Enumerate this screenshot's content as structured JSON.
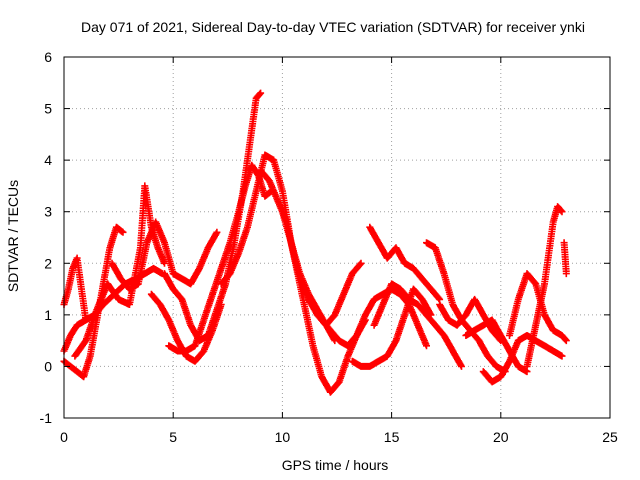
{
  "chart_data": {
    "type": "scatter",
    "title": "Day 071 of 2021, Sidereal Day-to-day VTEC variation (SDTVAR) for receiver ynki",
    "xlabel": "GPS time / hours",
    "ylabel": "SDTVAR / TECUs",
    "xlim": [
      0,
      25
    ],
    "ylim": [
      -1,
      6
    ],
    "xticks": [
      "0",
      "5",
      "10",
      "15",
      "20",
      "25"
    ],
    "yticks": [
      "-1",
      "0",
      "1",
      "2",
      "3",
      "4",
      "5",
      "6"
    ],
    "marker": "plus",
    "grid": true,
    "colors": {
      "series": "#ff0000",
      "grid": "#a0a0a0",
      "axis": "#000000"
    },
    "series": [
      {
        "name": "arc-01",
        "x": [
          0.0,
          0.2,
          0.4,
          0.6,
          0.8,
          1.0
        ],
        "y": [
          1.2,
          1.5,
          1.9,
          2.1,
          1.5,
          0.9
        ]
      },
      {
        "name": "arc-02",
        "x": [
          0.0,
          0.3,
          0.6,
          0.9,
          1.2,
          1.5,
          1.8,
          2.1,
          2.4,
          2.7
        ],
        "y": [
          0.1,
          0.0,
          -0.1,
          -0.2,
          0.2,
          0.9,
          1.6,
          2.3,
          2.7,
          2.6
        ]
      },
      {
        "name": "arc-03",
        "x": [
          0.0,
          0.3,
          0.6,
          1.0,
          1.4,
          1.8,
          2.3,
          2.8,
          3.3,
          3.7,
          4.1,
          4.5
        ],
        "y": [
          0.3,
          0.6,
          0.8,
          0.9,
          1.0,
          1.2,
          1.4,
          1.6,
          1.7,
          1.8,
          1.9,
          1.8
        ]
      },
      {
        "name": "arc-04",
        "x": [
          0.5,
          1.0,
          1.5,
          2.0,
          2.5,
          3.0,
          3.5,
          3.7,
          4.0,
          4.3,
          4.6
        ],
        "y": [
          0.2,
          0.5,
          1.1,
          1.6,
          1.3,
          1.2,
          2.3,
          3.5,
          2.7,
          2.3,
          2.0
        ]
      },
      {
        "name": "arc-05",
        "x": [
          2.2,
          2.6,
          3.0,
          3.4,
          3.8,
          4.2,
          4.6,
          5.0,
          5.4,
          5.8,
          6.2,
          6.6,
          7.0
        ],
        "y": [
          2.0,
          1.7,
          1.5,
          1.6,
          2.4,
          2.8,
          2.4,
          1.8,
          1.7,
          1.6,
          1.9,
          2.3,
          2.6
        ]
      },
      {
        "name": "arc-06",
        "x": [
          4.0,
          4.4,
          4.8,
          5.2,
          5.6,
          6.0,
          6.4,
          6.8,
          7.2
        ],
        "y": [
          1.4,
          1.2,
          0.9,
          0.5,
          0.2,
          0.1,
          0.3,
          0.7,
          1.2
        ]
      },
      {
        "name": "arc-07",
        "x": [
          4.6,
          5.0,
          5.4,
          5.8,
          6.2,
          6.6,
          7.0,
          7.4,
          7.8,
          8.2,
          8.5,
          8.8,
          9.0
        ],
        "y": [
          1.8,
          1.5,
          1.3,
          0.8,
          0.5,
          0.6,
          1.1,
          1.6,
          2.4,
          3.4,
          4.3,
          5.2,
          5.3
        ]
      },
      {
        "name": "arc-08",
        "x": [
          4.8,
          5.2,
          5.6,
          6.0,
          6.4,
          6.8,
          7.2,
          7.6,
          8.0,
          8.3,
          8.6,
          8.9,
          9.2,
          9.5
        ],
        "y": [
          0.4,
          0.3,
          0.3,
          0.4,
          0.9,
          1.4,
          1.9,
          2.4,
          3.0,
          3.5,
          3.9,
          3.7,
          3.3,
          3.4
        ]
      },
      {
        "name": "arc-09",
        "x": [
          7.2,
          7.6,
          8.0,
          8.4,
          8.8,
          9.2,
          9.6,
          10.0,
          10.4,
          10.8,
          11.2,
          11.6,
          12.0,
          12.4
        ],
        "y": [
          1.6,
          1.8,
          2.2,
          2.7,
          3.4,
          4.1,
          4.0,
          3.4,
          2.4,
          1.8,
          1.4,
          1.1,
          0.8,
          0.5
        ]
      },
      {
        "name": "arc-10",
        "x": [
          9.0,
          9.4,
          9.8,
          10.2,
          10.6,
          11.0,
          11.4,
          11.8,
          12.2,
          12.6,
          13.0,
          13.4,
          13.8
        ],
        "y": [
          3.8,
          3.6,
          3.2,
          2.8,
          2.0,
          1.2,
          0.4,
          -0.2,
          -0.5,
          -0.3,
          0.2,
          0.6,
          0.9
        ]
      },
      {
        "name": "arc-11",
        "x": [
          10.0,
          10.4,
          10.8,
          11.2,
          11.6,
          12.0,
          12.4,
          12.8,
          13.2,
          13.6
        ],
        "y": [
          3.0,
          2.4,
          1.7,
          1.3,
          1.0,
          0.8,
          1.0,
          1.4,
          1.8,
          2.0
        ]
      },
      {
        "name": "arc-12",
        "x": [
          11.8,
          12.2,
          12.6,
          13.0,
          13.4,
          13.8,
          14.2,
          14.6,
          15.0,
          15.4,
          15.8,
          16.2,
          16.6
        ],
        "y": [
          0.9,
          0.7,
          0.5,
          0.4,
          0.6,
          1.0,
          1.3,
          1.4,
          1.5,
          1.4,
          1.2,
          0.8,
          0.4
        ]
      },
      {
        "name": "arc-13",
        "x": [
          13.2,
          13.6,
          14.0,
          14.4,
          14.8,
          15.2,
          15.6,
          16.0,
          16.4,
          16.8
        ],
        "y": [
          0.1,
          0.0,
          0.0,
          0.1,
          0.2,
          0.5,
          1.0,
          1.5,
          1.3,
          1.0
        ]
      },
      {
        "name": "arc-14",
        "x": [
          14.0,
          14.4,
          14.8,
          15.2,
          15.6,
          16.0,
          16.4,
          16.8,
          17.2
        ],
        "y": [
          2.7,
          2.4,
          2.1,
          2.3,
          2.0,
          1.9,
          1.7,
          1.5,
          1.3
        ]
      },
      {
        "name": "arc-15",
        "x": [
          14.2,
          14.6,
          15.0,
          15.4,
          15.8,
          16.2,
          16.6,
          17.0,
          17.4,
          17.8,
          18.2
        ],
        "y": [
          0.8,
          1.2,
          1.6,
          1.5,
          1.3,
          1.2,
          1.0,
          0.8,
          0.6,
          0.3,
          0.0
        ]
      },
      {
        "name": "arc-16",
        "x": [
          16.6,
          17.0,
          17.4,
          17.8,
          18.2,
          18.6,
          19.0,
          19.4,
          19.8,
          20.2
        ],
        "y": [
          2.4,
          2.3,
          1.8,
          1.2,
          0.9,
          0.7,
          0.5,
          0.2,
          0.0,
          -0.1
        ]
      },
      {
        "name": "arc-17",
        "x": [
          17.2,
          17.6,
          18.0,
          18.4,
          18.8,
          19.2,
          19.6,
          20.0
        ],
        "y": [
          1.2,
          0.9,
          0.8,
          1.0,
          1.3,
          1.0,
          0.7,
          0.5
        ]
      },
      {
        "name": "arc-18",
        "x": [
          18.4,
          18.8,
          19.2,
          19.6,
          20.0,
          20.4,
          20.8,
          21.2
        ],
        "y": [
          0.6,
          0.7,
          0.8,
          0.9,
          0.6,
          0.3,
          0.0,
          -0.1
        ]
      },
      {
        "name": "arc-19",
        "x": [
          19.2,
          19.6,
          20.0,
          20.4,
          20.8,
          21.2,
          21.6,
          22.0,
          22.4,
          22.8
        ],
        "y": [
          -0.1,
          -0.3,
          -0.2,
          0.1,
          0.5,
          0.6,
          0.5,
          0.4,
          0.3,
          0.2
        ]
      },
      {
        "name": "arc-20",
        "x": [
          20.4,
          20.8,
          21.2,
          21.6,
          22.0,
          22.4,
          22.8,
          23.0
        ],
        "y": [
          0.6,
          1.3,
          1.8,
          1.6,
          1.0,
          0.7,
          0.6,
          0.5
        ]
      },
      {
        "name": "arc-21",
        "x": [
          21.2,
          21.4,
          21.6,
          21.8,
          22.0,
          22.2,
          22.4,
          22.6,
          22.8
        ],
        "y": [
          0.0,
          0.4,
          0.8,
          1.2,
          1.6,
          2.2,
          2.8,
          3.1,
          3.0
        ]
      },
      {
        "name": "arc-22",
        "x": [
          22.9,
          23.0
        ],
        "y": [
          2.4,
          1.8
        ]
      }
    ]
  }
}
